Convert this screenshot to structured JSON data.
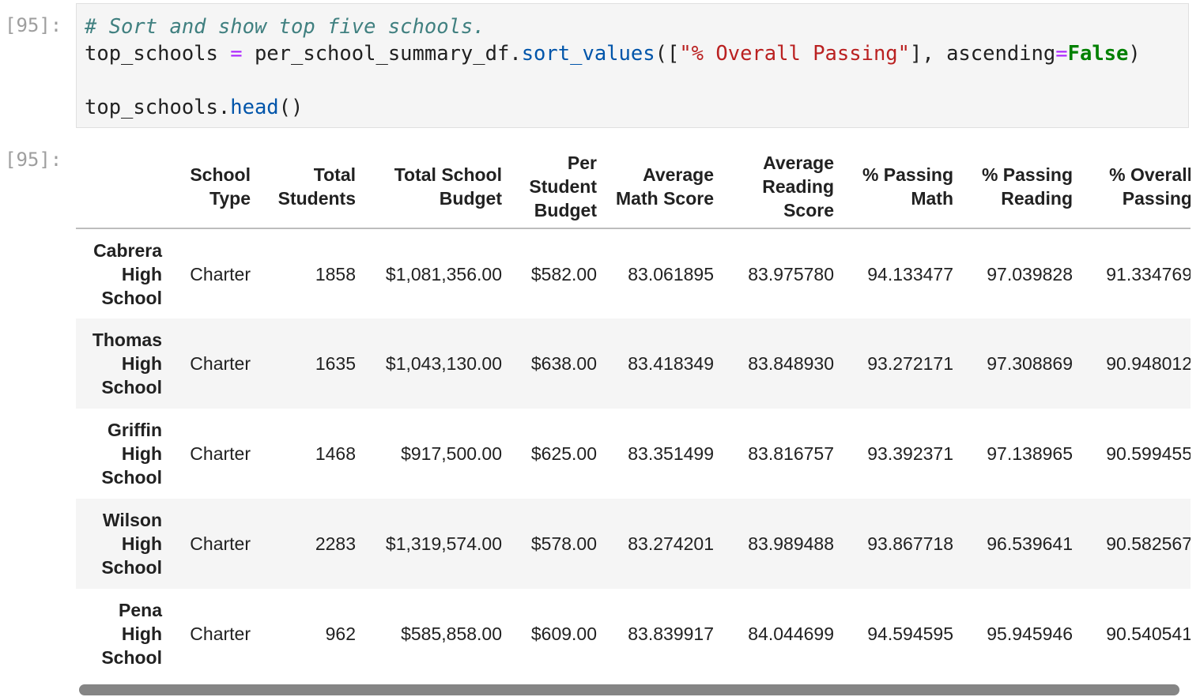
{
  "cell": {
    "input_prompt": "[95]:",
    "output_prompt": "[95]:",
    "code": {
      "comment": "# Sort and show top five schools.",
      "line2_var": "top_schools ",
      "line2_eq": "=",
      "line2_obj": " per_school_summary_df.",
      "line2_method": "sort_values",
      "line2_open": "([",
      "line2_str": "\"% Overall Passing\"",
      "line2_mid": "], ascending",
      "line2_eq2": "=",
      "line2_kw": "False",
      "line2_close": ")",
      "line4_obj": "top_schools.",
      "line4_method": "head",
      "line4_call": "()"
    }
  },
  "table": {
    "columns": [
      "",
      "School Type",
      "Total Students",
      "Total School Budget",
      "Per Student Budget",
      "Average Math Score",
      "Average Reading Score",
      "% Passing Math",
      "% Passing Reading",
      "% Overall Passing"
    ],
    "rows": [
      [
        "Cabrera High School",
        "Charter",
        "1858",
        "$1,081,356.00",
        "$582.00",
        "83.061895",
        "83.975780",
        "94.133477",
        "97.039828",
        "91.334769"
      ],
      [
        "Thomas High School",
        "Charter",
        "1635",
        "$1,043,130.00",
        "$638.00",
        "83.418349",
        "83.848930",
        "93.272171",
        "97.308869",
        "90.948012"
      ],
      [
        "Griffin High School",
        "Charter",
        "1468",
        "$917,500.00",
        "$625.00",
        "83.351499",
        "83.816757",
        "93.392371",
        "97.138965",
        "90.599455"
      ],
      [
        "Wilson High School",
        "Charter",
        "2283",
        "$1,319,574.00",
        "$578.00",
        "83.274201",
        "83.989488",
        "93.867718",
        "96.539641",
        "90.582567"
      ],
      [
        "Pena High School",
        "Charter",
        "962",
        "$585,858.00",
        "$609.00",
        "83.839917",
        "84.044699",
        "94.594595",
        "95.945946",
        "90.540541"
      ]
    ]
  }
}
